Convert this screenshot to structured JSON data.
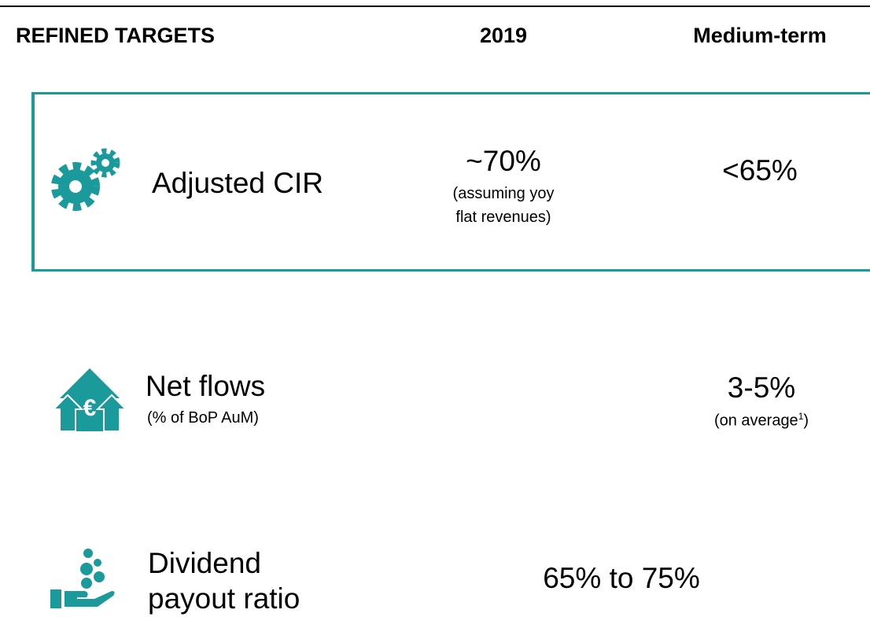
{
  "header": {
    "title": "REFINED TARGETS",
    "col_2019": "2019",
    "col_medium": "Medium-term"
  },
  "rows": [
    {
      "label": "Adjusted CIR",
      "value_2019": "~70%",
      "note_2019": [
        "(assuming yoy",
        "flat revenues)"
      ],
      "value_medium": "<65%"
    },
    {
      "label": "Net flows",
      "sublabel": "(% of BoP AuM)",
      "value_medium": "3-5%",
      "note_medium": [
        "(on average",
        "1",
        ")"
      ]
    },
    {
      "label": [
        "Dividend",
        "payout ratio"
      ],
      "value_combined": "65% to 75%"
    }
  ]
}
